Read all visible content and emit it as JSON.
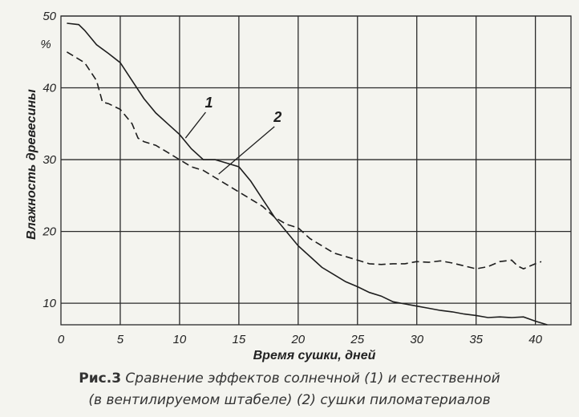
{
  "chart_data": {
    "type": "line",
    "xlabel": "Время сушки, дней",
    "ylabel": "Влажность древесины",
    "y_unit": "%",
    "xlim": [
      0,
      43
    ],
    "ylim": [
      7,
      50
    ],
    "x_ticks": [
      0,
      5,
      10,
      15,
      20,
      25,
      30,
      35,
      40
    ],
    "y_ticks": [
      10,
      20,
      30,
      40,
      50
    ],
    "grid": true,
    "series": [
      {
        "name": "1",
        "style": "solid",
        "x": [
          0.5,
          1.5,
          2,
          3,
          4,
          5,
          6,
          7,
          8,
          9,
          10,
          11,
          12,
          13,
          14,
          15,
          16,
          17,
          18,
          19,
          20,
          21,
          22,
          23,
          24,
          25,
          26,
          27,
          28,
          29,
          30,
          31,
          32,
          33,
          34,
          35,
          36,
          37,
          38,
          39,
          40,
          41
        ],
        "y": [
          49,
          48.8,
          48,
          46,
          44.8,
          43.5,
          41,
          38.5,
          36.5,
          35,
          33.5,
          31.5,
          30,
          30,
          29.5,
          29,
          27,
          24.5,
          22,
          20,
          18,
          16.5,
          15,
          14,
          13,
          12.3,
          11.5,
          11,
          10.2,
          9.9,
          9.6,
          9.3,
          9.0,
          8.8,
          8.5,
          8.3,
          8.0,
          8.1,
          8.0,
          8.1,
          7.5,
          7.0
        ]
      },
      {
        "name": "2",
        "style": "dashed",
        "x": [
          0.5,
          2,
          3,
          3.5,
          4,
          5,
          6,
          6.5,
          7,
          8,
          9,
          10,
          11,
          12,
          13,
          14,
          15,
          16,
          17,
          18,
          19,
          20,
          21,
          22,
          23,
          24,
          25,
          26,
          27,
          28,
          29,
          30,
          31,
          32,
          33,
          34,
          35,
          36,
          37,
          38,
          38.5,
          39,
          40,
          40.5
        ],
        "y": [
          45,
          43.5,
          41,
          38,
          37.8,
          37,
          35,
          33,
          32.5,
          32,
          31,
          30,
          29,
          28.5,
          27.5,
          26.5,
          25.5,
          24.5,
          23.5,
          22,
          21,
          20.5,
          19,
          18,
          17,
          16.5,
          16,
          15.5,
          15.4,
          15.5,
          15.5,
          15.8,
          15.7,
          15.9,
          15.6,
          15.2,
          14.8,
          15.1,
          15.8,
          16.0,
          15.2,
          14.8,
          15.5,
          15.8
        ]
      }
    ],
    "annotations": [
      {
        "text": "1",
        "x_from": 12.2,
        "y_from": 36.6,
        "x_to": 10.5,
        "y_to": 33.0
      },
      {
        "text": "2",
        "x_from": 18.0,
        "y_from": 34.6,
        "x_to": 13.3,
        "y_to": 28.0
      }
    ],
    "caption": {
      "prefix": "Рис.3",
      "line1": " Сравнение эффектов солнечной (1) и естественной",
      "line2": "(в вентилируемом штабеле) (2) сушки пиломатериалов"
    }
  }
}
